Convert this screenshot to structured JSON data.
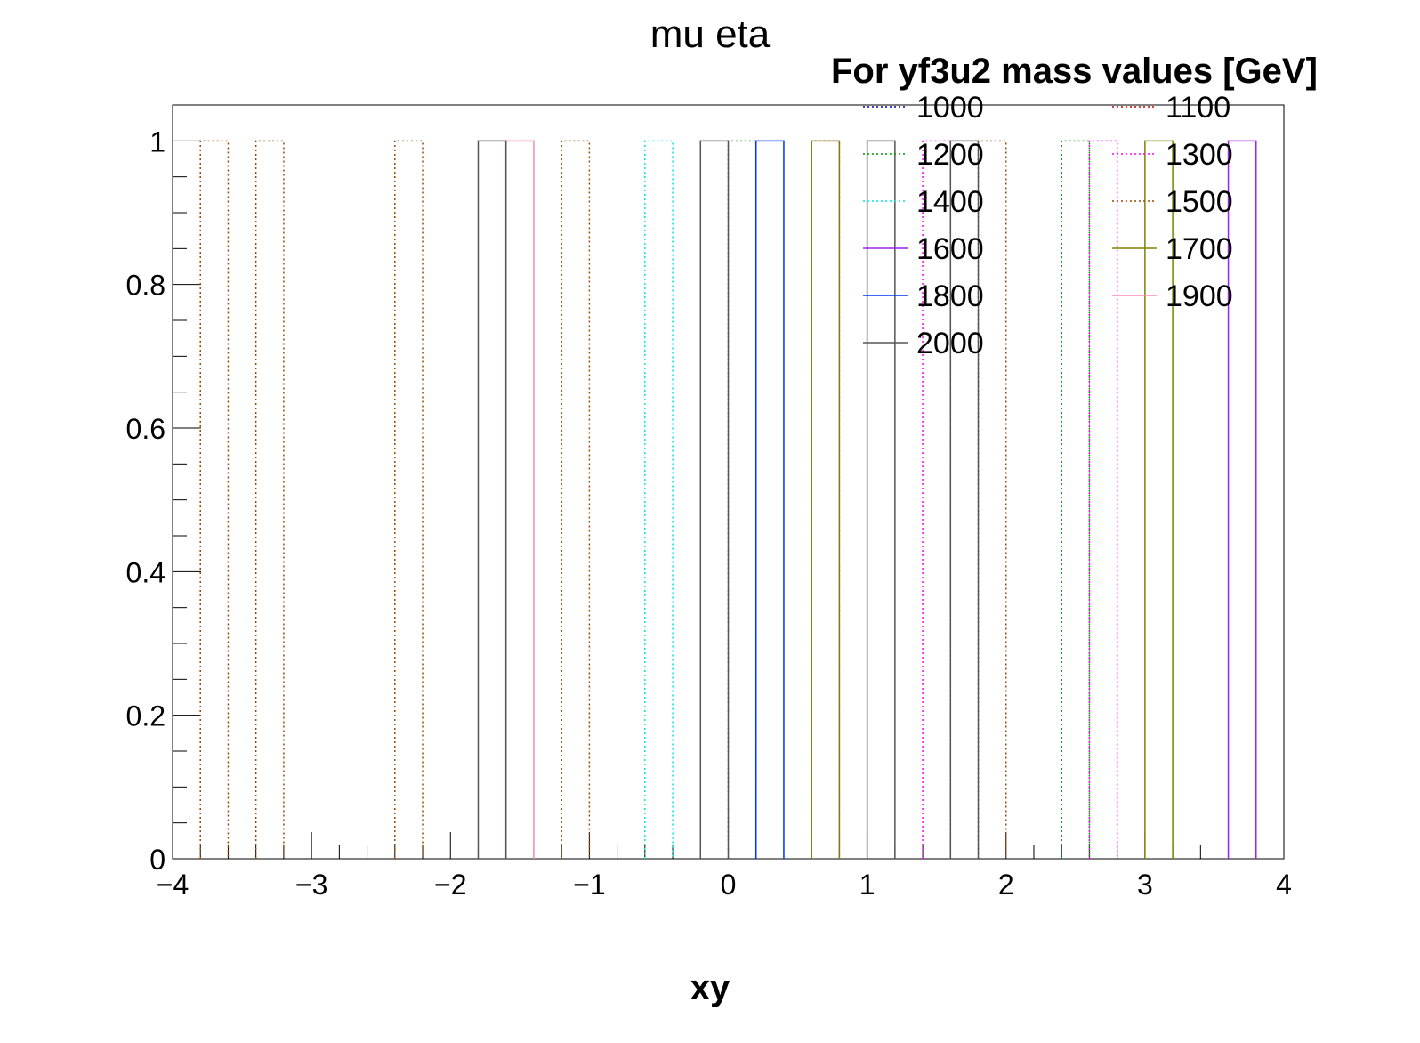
{
  "chart_data": {
    "type": "histogram",
    "title": "mu eta",
    "xlabel": "xy",
    "ylabel": "",
    "xlim": [
      -4,
      4
    ],
    "ylim": [
      0,
      1.05
    ],
    "bin_width": 0.2,
    "x_ticks": [
      -4,
      -3,
      -2,
      -1,
      0,
      1,
      2,
      3,
      4
    ],
    "x_tick_labels": [
      "−4",
      "−3",
      "−2",
      "−1",
      "0",
      "1",
      "2",
      "3",
      "4"
    ],
    "y_ticks": [
      0,
      0.2,
      0.4,
      0.6,
      0.8,
      1
    ],
    "y_tick_labels": [
      "0",
      "0.2",
      "0.4",
      "0.6",
      "0.8",
      "1"
    ],
    "legend": {
      "header": "For yf3u2 mass values [GeV]",
      "placement": "top-right",
      "columns": 2
    },
    "series": [
      {
        "name": "1000",
        "color": "#0000cc",
        "style": "dotted",
        "bins": []
      },
      {
        "name": "1100",
        "color": "#cc0000",
        "style": "dotted",
        "bins": []
      },
      {
        "name": "1200",
        "color": "#009900",
        "style": "dotted",
        "bins": [
          [
            0.0,
            1
          ],
          [
            2.4,
            1
          ]
        ]
      },
      {
        "name": "1300",
        "color": "#ff00ff",
        "style": "dotted",
        "bins": [
          [
            0.6,
            1
          ],
          [
            1.4,
            1
          ],
          [
            2.6,
            1
          ]
        ]
      },
      {
        "name": "1400",
        "color": "#00e5e5",
        "style": "dotted",
        "bins": [
          [
            -0.6,
            1
          ]
        ]
      },
      {
        "name": "1500",
        "color": "#994c00",
        "style": "dotted",
        "bins": [
          [
            -3.8,
            1
          ],
          [
            -3.4,
            1
          ],
          [
            -2.4,
            1
          ],
          [
            -1.2,
            1
          ],
          [
            1.8,
            1
          ]
        ]
      },
      {
        "name": "1600",
        "color": "#a020f0",
        "style": "solid",
        "bins": [
          [
            3.6,
            1
          ]
        ]
      },
      {
        "name": "1700",
        "color": "#808000",
        "style": "solid",
        "bins": [
          [
            0.6,
            1
          ],
          [
            3.0,
            1
          ]
        ]
      },
      {
        "name": "1800",
        "color": "#0033ff",
        "style": "solid",
        "bins": [
          [
            0.2,
            1
          ]
        ]
      },
      {
        "name": "1900",
        "color": "#ff88bb",
        "style": "solid",
        "bins": [
          [
            -1.6,
            1
          ]
        ]
      },
      {
        "name": "2000",
        "color": "#555555",
        "style": "solid",
        "bins": [
          [
            -1.8,
            1
          ],
          [
            -0.2,
            1
          ],
          [
            1.0,
            1
          ],
          [
            1.6,
            1
          ]
        ]
      }
    ]
  }
}
